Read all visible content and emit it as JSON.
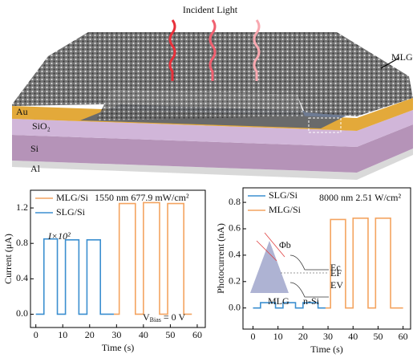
{
  "illustration": {
    "title": "Incident Light",
    "labels": [
      "MLG",
      "Au",
      "SiO₂",
      "Si",
      "Al"
    ]
  },
  "chart_data": [
    {
      "type": "line",
      "ylabel": "Current (μA)",
      "xlabel": "Time (s)",
      "xlim": [
        -2,
        63
      ],
      "ylim": [
        -0.15,
        1.4
      ],
      "xticks": [
        0,
        10,
        20,
        30,
        40,
        50,
        60
      ],
      "yticks": [
        {
          "value": 0,
          "label": "0.0"
        },
        0.4,
        0.8,
        1.2
      ],
      "series": [
        {
          "name": "MLG/Si",
          "color": "#f4a460",
          "x": [
            29,
            31,
            31,
            37,
            37,
            40,
            40,
            46,
            46,
            49,
            49,
            55,
            55,
            58
          ],
          "values": [
            0,
            0,
            1.25,
            1.25,
            0,
            0,
            1.26,
            1.26,
            0,
            0,
            1.25,
            1.25,
            0,
            0
          ]
        },
        {
          "name": "SLG/Si",
          "color": "#3b8fd0",
          "x": [
            0,
            3,
            3,
            8,
            8,
            11,
            11,
            16,
            16,
            19,
            19,
            24,
            24,
            29
          ],
          "values": [
            0,
            0,
            0.85,
            0.85,
            0,
            0,
            0.84,
            0.84,
            0,
            0,
            0.84,
            0.84,
            0,
            0
          ]
        }
      ],
      "annotations": [
        "1550 nm 677.9 mW/cm²",
        "I×10²"
      ],
      "bias_label": [
        "V",
        "Bias",
        " = 0 V"
      ]
    },
    {
      "type": "line",
      "ylabel": "Photocurrent (nA)",
      "xlabel": "Time (s)",
      "xlim": [
        -4,
        63
      ],
      "ylim": [
        -0.16,
        0.91
      ],
      "xticks": [
        0,
        10,
        20,
        30,
        40,
        50,
        60
      ],
      "yticks": [
        {
          "value": 0,
          "label": "0.0"
        },
        0.2,
        0.4,
        0.6,
        0.8
      ],
      "series": [
        {
          "name": "SLG/Si",
          "color": "#3b8fd0",
          "x": [
            0,
            3,
            3,
            9,
            9,
            12,
            12,
            17,
            17,
            20,
            20,
            26,
            26,
            29
          ],
          "values": [
            0,
            0,
            0.04,
            0.04,
            0,
            0,
            0.04,
            0.04,
            0,
            0,
            0.04,
            0.04,
            0,
            0
          ]
        },
        {
          "name": "MLG/Si",
          "color": "#f4a460",
          "x": [
            29,
            31,
            31,
            37,
            37,
            40,
            40,
            46,
            46,
            49,
            49,
            55,
            55,
            60
          ],
          "values": [
            0,
            0,
            0.67,
            0.67,
            0,
            0,
            0.68,
            0.68,
            0,
            0,
            0.68,
            0.68,
            0,
            0
          ]
        }
      ],
      "annotations": [
        "8000 nm 2.51 W/cm²"
      ],
      "inset_labels": [
        "MLG",
        "n-Si",
        "Ec",
        "EF",
        "EV",
        "Φb"
      ]
    }
  ]
}
